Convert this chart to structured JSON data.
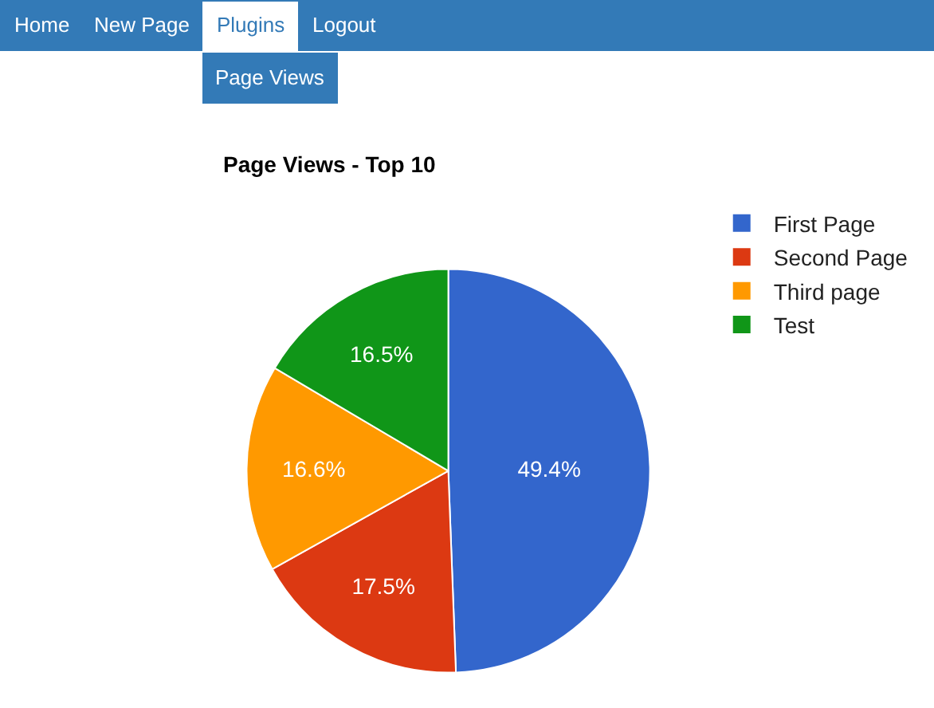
{
  "chart_data": {
    "type": "pie",
    "title": "Page Views - Top 10",
    "categories": [
      "First Page",
      "Second Page",
      "Third page",
      "Test"
    ],
    "values": [
      49.4,
      17.5,
      16.6,
      16.5
    ],
    "value_labels": [
      "49.4%",
      "17.5%",
      "16.6%",
      "16.5%"
    ],
    "colors": [
      "#3366cc",
      "#dc3912",
      "#ff9900",
      "#109618"
    ],
    "legend": "top right",
    "annotations": [
      "Home",
      "New Page",
      "Plugins",
      "Logout",
      "Page Views"
    ]
  }
}
